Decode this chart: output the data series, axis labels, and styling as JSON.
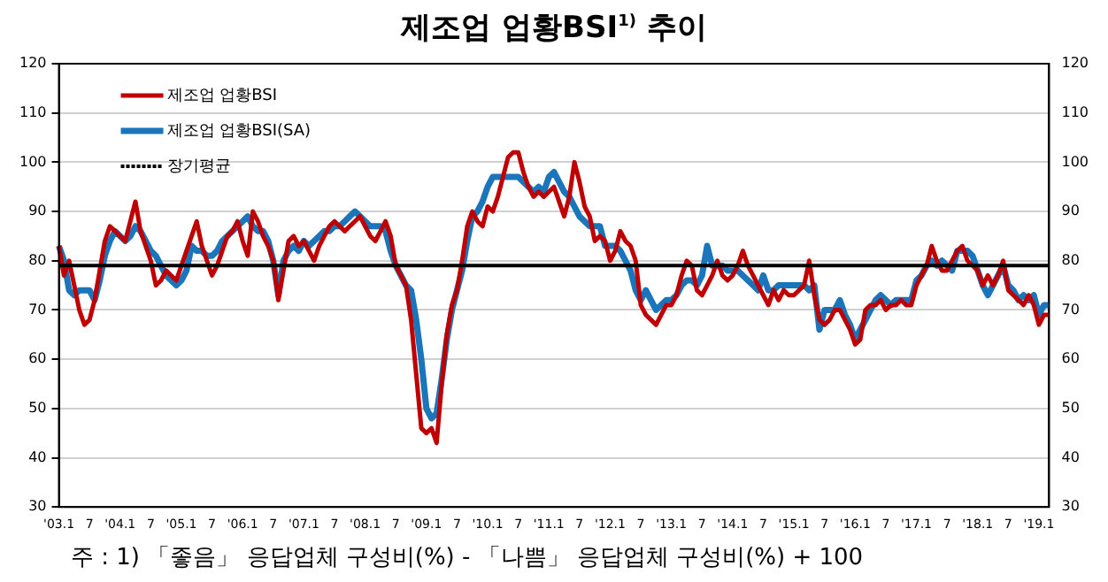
{
  "chart_data": {
    "type": "line",
    "title": "제조업 업황BSI$^{1)}$ 추이",
    "categories": [
      "'03.1",
      null,
      null,
      null,
      null,
      null,
      "7",
      null,
      null,
      null,
      null,
      null,
      "'04.1",
      null,
      null,
      null,
      null,
      null,
      "7",
      null,
      null,
      null,
      null,
      null,
      "'05.1",
      null,
      null,
      null,
      null,
      null,
      "7",
      null,
      null,
      null,
      null,
      null,
      "'06.1",
      null,
      null,
      null,
      null,
      null,
      "7",
      null,
      null,
      null,
      null,
      null,
      "'07.1",
      null,
      null,
      null,
      null,
      null,
      "7",
      null,
      null,
      null,
      null,
      null,
      "'08.1",
      null,
      null,
      null,
      null,
      null,
      "7",
      null,
      null,
      null,
      null,
      null,
      "'09.1",
      null,
      null,
      null,
      null,
      null,
      "7",
      null,
      null,
      null,
      null,
      null,
      "'10.1",
      null,
      null,
      null,
      null,
      null,
      "7",
      null,
      null,
      null,
      null,
      null,
      "'11.1",
      null,
      null,
      null,
      null,
      null,
      "7",
      null,
      null,
      null,
      null,
      null,
      "'12.1",
      null,
      null,
      null,
      null,
      null,
      "7",
      null,
      null,
      null,
      null,
      null,
      "'13.1",
      null,
      null,
      null,
      null,
      null,
      "7",
      null,
      null,
      null,
      null,
      null,
      "'14.1",
      null,
      null,
      null,
      null,
      null,
      "7",
      null,
      null,
      null,
      null,
      null,
      "'15.1",
      null,
      null,
      null,
      null,
      null,
      "7",
      null,
      null,
      null,
      null,
      null,
      "'16.1",
      null,
      null,
      null,
      null,
      null,
      "7",
      null,
      null,
      null,
      null,
      null,
      "'17.1",
      null,
      null,
      null,
      null,
      null,
      "7",
      null,
      null,
      null,
      null,
      null,
      "'18.1",
      null,
      null,
      null,
      null,
      null,
      "7",
      null,
      null,
      null,
      null,
      null,
      "'19.1",
      null,
      null
    ],
    "series": [
      {
        "name": "제조업 업황BSI",
        "color": "#c00000",
        "values": [
          83,
          77,
          80,
          75,
          70,
          67,
          68,
          72,
          78,
          84,
          87,
          86,
          85,
          84,
          88,
          92,
          86,
          83,
          80,
          75,
          76,
          78,
          77,
          76,
          79,
          82,
          85,
          88,
          83,
          80,
          77,
          79,
          82,
          85,
          86,
          88,
          84,
          81,
          90,
          88,
          85,
          83,
          80,
          72,
          78,
          84,
          85,
          83,
          84,
          82,
          80,
          83,
          85,
          87,
          88,
          87,
          86,
          87,
          88,
          89,
          87,
          85,
          84,
          86,
          88,
          85,
          79,
          77,
          75,
          68,
          57,
          46,
          45,
          46,
          43,
          55,
          65,
          71,
          74,
          80,
          87,
          90,
          88,
          87,
          91,
          90,
          93,
          97,
          101,
          102,
          102,
          98,
          95,
          93,
          94,
          93,
          94,
          95,
          92,
          89,
          93,
          100,
          96,
          91,
          89,
          84,
          85,
          84,
          80,
          82,
          86,
          84,
          83,
          80,
          71,
          69,
          68,
          67,
          69,
          71,
          71,
          73,
          77,
          80,
          79,
          74,
          73,
          75,
          77,
          80,
          77,
          76,
          77,
          79,
          82,
          79,
          77,
          75,
          73,
          71,
          74,
          72,
          74,
          73,
          73,
          74,
          75,
          80,
          73,
          68,
          67,
          68,
          70,
          70,
          68,
          66,
          63,
          64,
          70,
          71,
          71,
          72,
          70,
          71,
          71,
          72,
          71,
          71,
          75,
          77,
          79,
          83,
          80,
          78,
          78,
          80,
          82,
          83,
          80,
          79,
          78,
          75,
          77,
          75,
          77,
          80,
          74,
          73,
          72,
          71,
          73,
          71,
          67,
          69,
          69
        ]
      },
      {
        "name": "제조업 업황BSI(SA)",
        "color": "#1a75bb",
        "values": [
          83,
          80,
          74,
          73,
          74,
          74,
          74,
          72,
          76,
          81,
          84,
          86,
          85,
          84,
          85,
          87,
          86,
          84,
          82,
          81,
          79,
          77,
          76,
          75,
          76,
          78,
          83,
          82,
          82,
          81,
          81,
          82,
          84,
          85,
          86,
          87,
          88,
          89,
          87,
          86,
          86,
          84,
          80,
          73,
          80,
          82,
          83,
          82,
          84,
          83,
          84,
          85,
          86,
          86,
          87,
          87,
          88,
          89,
          90,
          89,
          88,
          87,
          87,
          87,
          86,
          82,
          79,
          77,
          75,
          74,
          68,
          60,
          50,
          48,
          49,
          56,
          64,
          70,
          74,
          78,
          84,
          89,
          90,
          92,
          95,
          97,
          97,
          97,
          97,
          97,
          97,
          96,
          95,
          94,
          95,
          94,
          97,
          98,
          96,
          94,
          93,
          91,
          89,
          88,
          87,
          87,
          87,
          83,
          83,
          83,
          82,
          80,
          78,
          74,
          72,
          74,
          72,
          70,
          71,
          72,
          72,
          73,
          75,
          76,
          76,
          75,
          77,
          83,
          79,
          79,
          79,
          78,
          78,
          78,
          77,
          76,
          75,
          74,
          77,
          74,
          74,
          75,
          75,
          75,
          75,
          75,
          75,
          74,
          75,
          66,
          70,
          70,
          70,
          72,
          69,
          67,
          64,
          66,
          68,
          70,
          72,
          73,
          72,
          71,
          72,
          72,
          72,
          72,
          76,
          77,
          79,
          80,
          79,
          80,
          79,
          78,
          82,
          82,
          82,
          81,
          78,
          75,
          73,
          75,
          77,
          79,
          75,
          74,
          72,
          73,
          72,
          73,
          69,
          71,
          71
        ]
      }
    ],
    "ref_lines": [
      {
        "axis": "y",
        "value": 79,
        "label": "장기평균",
        "color": "#000000"
      }
    ],
    "ylim": [
      30,
      120
    ],
    "yticks": [
      30,
      40,
      50,
      60,
      70,
      80,
      90,
      100,
      110,
      120
    ],
    "y2lim": [
      30,
      120
    ],
    "y2ticks": [
      30,
      40,
      50,
      60,
      70,
      80,
      90,
      100,
      110,
      120
    ],
    "grid": "y",
    "legend": "top left",
    "marker": "none",
    "line_style": "solid",
    "annotations": [
      "주 : 1) 「좋음」 응답업체 구성비(%) - 「나쁨」 응답업체 구성비(%) + 100"
    ]
  }
}
